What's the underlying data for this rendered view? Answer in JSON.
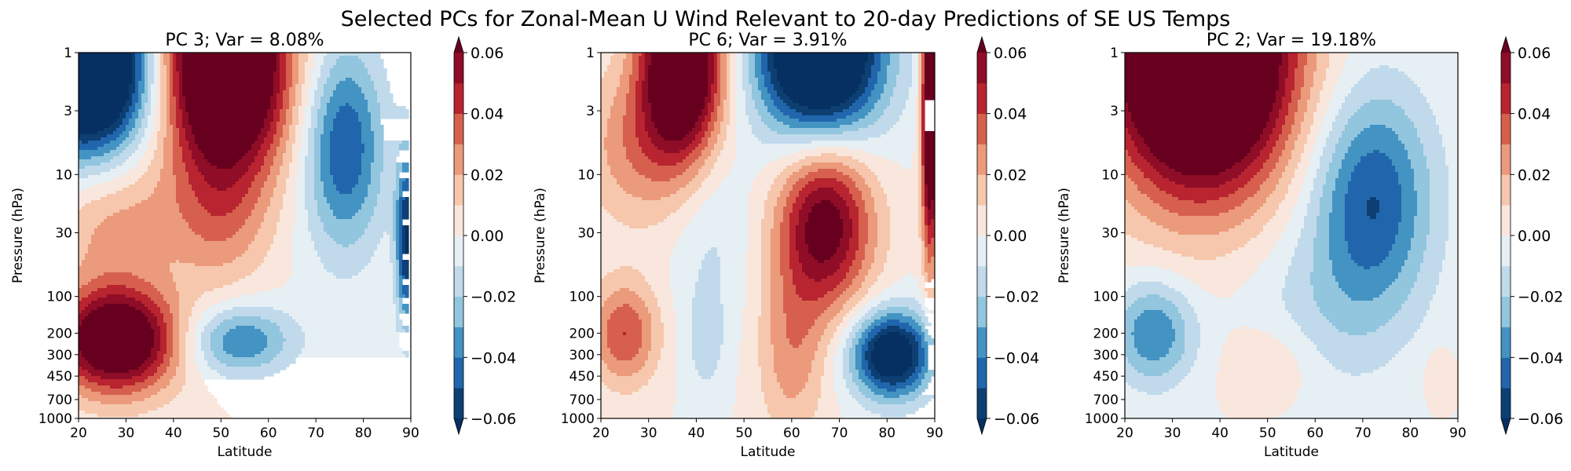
{
  "figure_title": "Selected PCs for Zonal-Mean U Wind Relevant to 20-day Predictions of SE US Temps",
  "chart_data": [
    {
      "type": "heatmap",
      "title": "PC 3; Var = 8.08%",
      "xlabel": "Latitude",
      "ylabel": "Pressure (hPa)",
      "xlim": [
        20,
        90
      ],
      "ylim": [
        1000,
        1
      ],
      "yscale": "log",
      "xticks": [
        "20",
        "30",
        "40",
        "50",
        "60",
        "70",
        "80",
        "90"
      ],
      "yticks": [
        "1",
        "3",
        "10",
        "30",
        "100",
        "200",
        "300",
        "450",
        "700",
        "1000"
      ],
      "colorbar": {
        "min": -0.06,
        "max": 0.06,
        "step": 0.01,
        "ticks": [
          "0.06",
          "0.04",
          "0.02",
          "0.00",
          "−0.02",
          "−0.04",
          "−0.06"
        ]
      },
      "blobs": [
        {
          "lat": 22,
          "p": 1.3,
          "amp": -0.12,
          "slat": 9,
          "sp": 0.5
        },
        {
          "lat": 51,
          "p": 1.2,
          "amp": 0.12,
          "slat": 9,
          "sp": 0.65
        },
        {
          "lat": 76,
          "p": 6,
          "amp": -0.05,
          "slat": 6,
          "sp": 0.6
        },
        {
          "lat": 28,
          "p": 230,
          "amp": 0.09,
          "slat": 9,
          "sp": 0.3
        },
        {
          "lat": 54,
          "p": 230,
          "amp": -0.04,
          "slat": 8,
          "sp": 0.2
        },
        {
          "lat": 28,
          "p": 25,
          "amp": 0.025,
          "slat": 10,
          "sp": 0.4
        },
        {
          "lat": 89,
          "p": 35,
          "amp": -0.06,
          "slat": 1.5,
          "sp": 0.5
        },
        {
          "lat": 50,
          "p": 25,
          "amp": 0.02,
          "slat": 7,
          "sp": 0.4
        }
      ]
    },
    {
      "type": "heatmap",
      "title": "PC 6; Var = 3.91%",
      "xlabel": "Latitude",
      "ylabel": "Pressure (hPa)",
      "xlim": [
        20,
        90
      ],
      "ylim": [
        1000,
        1
      ],
      "yscale": "log",
      "xticks": [
        "20",
        "30",
        "40",
        "50",
        "60",
        "70",
        "80",
        "90"
      ],
      "yticks": [
        "1",
        "3",
        "10",
        "30",
        "100",
        "200",
        "300",
        "450",
        "700",
        "1000"
      ],
      "colorbar": {
        "min": -0.06,
        "max": 0.06,
        "step": 0.01,
        "ticks": [
          "0.06",
          "0.04",
          "0.02",
          "0.00",
          "−0.02",
          "−0.04",
          "−0.06"
        ]
      },
      "blobs": [
        {
          "lat": 37,
          "p": 1.2,
          "amp": 0.1,
          "slat": 6,
          "sp": 0.55
        },
        {
          "lat": 66,
          "p": 1,
          "amp": -0.11,
          "slat": 9,
          "sp": 0.5
        },
        {
          "lat": 67,
          "p": 25,
          "amp": 0.07,
          "slat": 7,
          "sp": 0.5
        },
        {
          "lat": 81,
          "p": 300,
          "amp": -0.08,
          "slat": 6,
          "sp": 0.25
        },
        {
          "lat": 25,
          "p": 200,
          "amp": 0.04,
          "slat": 5,
          "sp": 0.3
        },
        {
          "lat": 27,
          "p": 6,
          "amp": 0.025,
          "slat": 8,
          "sp": 0.45
        },
        {
          "lat": 89,
          "p": 3,
          "amp": 0.1,
          "slat": 1.2,
          "sp": 0.8
        },
        {
          "lat": 60,
          "p": 300,
          "amp": 0.025,
          "slat": 5,
          "sp": 0.5
        },
        {
          "lat": 43,
          "p": 30,
          "amp": -0.012,
          "slat": 6,
          "sp": 0.6
        },
        {
          "lat": 42,
          "p": 250,
          "amp": -0.013,
          "slat": 3,
          "sp": 0.3
        }
      ]
    },
    {
      "type": "heatmap",
      "title": "PC 2; Var = 19.18%",
      "xlabel": "Latitude",
      "ylabel": "Pressure (hPa)",
      "xlim": [
        20,
        90
      ],
      "ylim": [
        1000,
        1
      ],
      "yscale": "log",
      "xticks": [
        "20",
        "30",
        "40",
        "50",
        "60",
        "70",
        "80",
        "90"
      ],
      "yticks": [
        "1",
        "3",
        "10",
        "30",
        "100",
        "200",
        "300",
        "450",
        "700",
        "1000"
      ],
      "colorbar": {
        "min": -0.06,
        "max": 0.06,
        "step": 0.01,
        "ticks": [
          "0.06",
          "0.04",
          "0.02",
          "0.00",
          "−0.02",
          "−0.04",
          "−0.06"
        ]
      },
      "blobs": [
        {
          "lat": 36,
          "p": 1.1,
          "amp": 0.14,
          "slat": 13,
          "sp": 0.75
        },
        {
          "lat": 72,
          "p": 16,
          "amp": -0.05,
          "slat": 9,
          "sp": 0.65
        },
        {
          "lat": 26,
          "p": 200,
          "amp": -0.04,
          "slat": 6,
          "sp": 0.3
        },
        {
          "lat": 51,
          "p": 350,
          "amp": 0.014,
          "slat": 7,
          "sp": 0.25
        },
        {
          "lat": 86,
          "p": 450,
          "amp": 0.012,
          "slat": 2,
          "sp": 0.15
        },
        {
          "lat": 60,
          "p": 150,
          "amp": -0.013,
          "slat": 12,
          "sp": 0.5
        }
      ]
    }
  ]
}
